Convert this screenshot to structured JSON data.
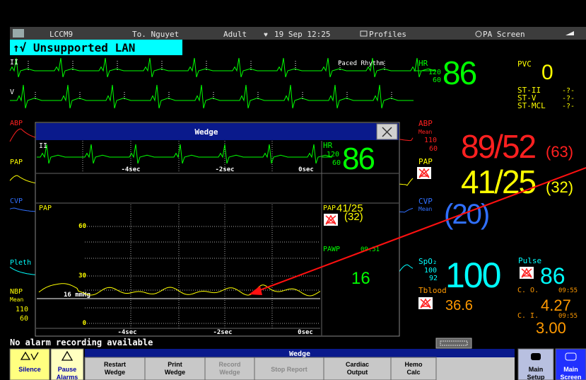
{
  "header": {
    "station": "LCCM9",
    "patient": "To. Nguyet",
    "category": "Adult",
    "datetime": "19 Sep 12:25",
    "profiles": "Profiles",
    "screen": "PA Screen"
  },
  "banner": "↑√ Unsupported LAN",
  "waves": {
    "ecg1": "II",
    "ecg2": "V",
    "rhythm": "Paced Rhythm",
    "abp": "ABP",
    "pap": "PAP",
    "cvp": "CVP",
    "pleth": "Pleth",
    "nbp": {
      "label": "NBP",
      "mean": "Mean",
      "high": "110",
      "low": "60"
    }
  },
  "numerics": {
    "hr": {
      "label": "HR",
      "high": "120",
      "low": "60",
      "value": "86"
    },
    "pvc": {
      "label": "PVC",
      "value": "0"
    },
    "st": [
      {
        "label": "ST-II",
        "value": "-?-"
      },
      {
        "label": "ST-V",
        "value": "-?-"
      },
      {
        "label": "ST-MCL",
        "value": "-?-"
      }
    ],
    "abp": {
      "label": "ABP",
      "mean": "Mean",
      "high": "110",
      "low": "60",
      "value": "89/52",
      "mean_value": "(63)"
    },
    "pap": {
      "label": "PAP",
      "value": "41/25",
      "mean_value": "(32)"
    },
    "cvp": {
      "label": "CVP",
      "mean": "Mean",
      "value": "(20)"
    },
    "spo2": {
      "label": "SpO₂",
      "high": "100",
      "low": "92",
      "value": "100"
    },
    "pulse": {
      "label": "Pulse",
      "value": "86"
    },
    "tblood": {
      "label": "Tblood",
      "value": "36.6"
    },
    "co": {
      "label": "C. O.",
      "time": "09:55",
      "value": "4.27"
    },
    "ci": {
      "label": "C. I.",
      "time": "09:55",
      "value": "3.00"
    }
  },
  "dialog": {
    "title": "Wedge",
    "ecg_label": "II",
    "ecg_ticks": [
      "-4sec",
      "-2sec",
      "0sec"
    ],
    "hr": {
      "label": "HR",
      "high": "120",
      "low": "60",
      "value": "86"
    },
    "plot_label": "PAP",
    "yticks": [
      "60",
      "30",
      "0"
    ],
    "ref": "16 mmHg",
    "xticks": [
      "-4sec",
      "-2sec",
      "0sec"
    ],
    "pap": {
      "label": "PAP",
      "value": "41/25",
      "mean_value": "(32)"
    },
    "pawp": {
      "label": "PAWP",
      "time": "09:51",
      "value": "16"
    }
  },
  "status": "No alarm recording available",
  "toolbar": {
    "title": "Wedge",
    "buttons": [
      {
        "lines": [
          "Silence"
        ]
      },
      {
        "lines": [
          "Pause",
          "Alarms"
        ]
      },
      {
        "lines": [
          "Restart",
          "Wedge"
        ]
      },
      {
        "lines": [
          "Print",
          "Wedge"
        ]
      },
      {
        "lines": [
          "Record",
          "Wedge"
        ]
      },
      {
        "lines": [
          "Stop Report"
        ]
      },
      {
        "lines": [
          "Cardiac",
          "Output"
        ]
      },
      {
        "lines": [
          "Hemo",
          "Calc"
        ]
      },
      {
        "lines": [
          "Main",
          "Setup"
        ]
      },
      {
        "lines": [
          "Main",
          "Screen"
        ]
      }
    ]
  }
}
